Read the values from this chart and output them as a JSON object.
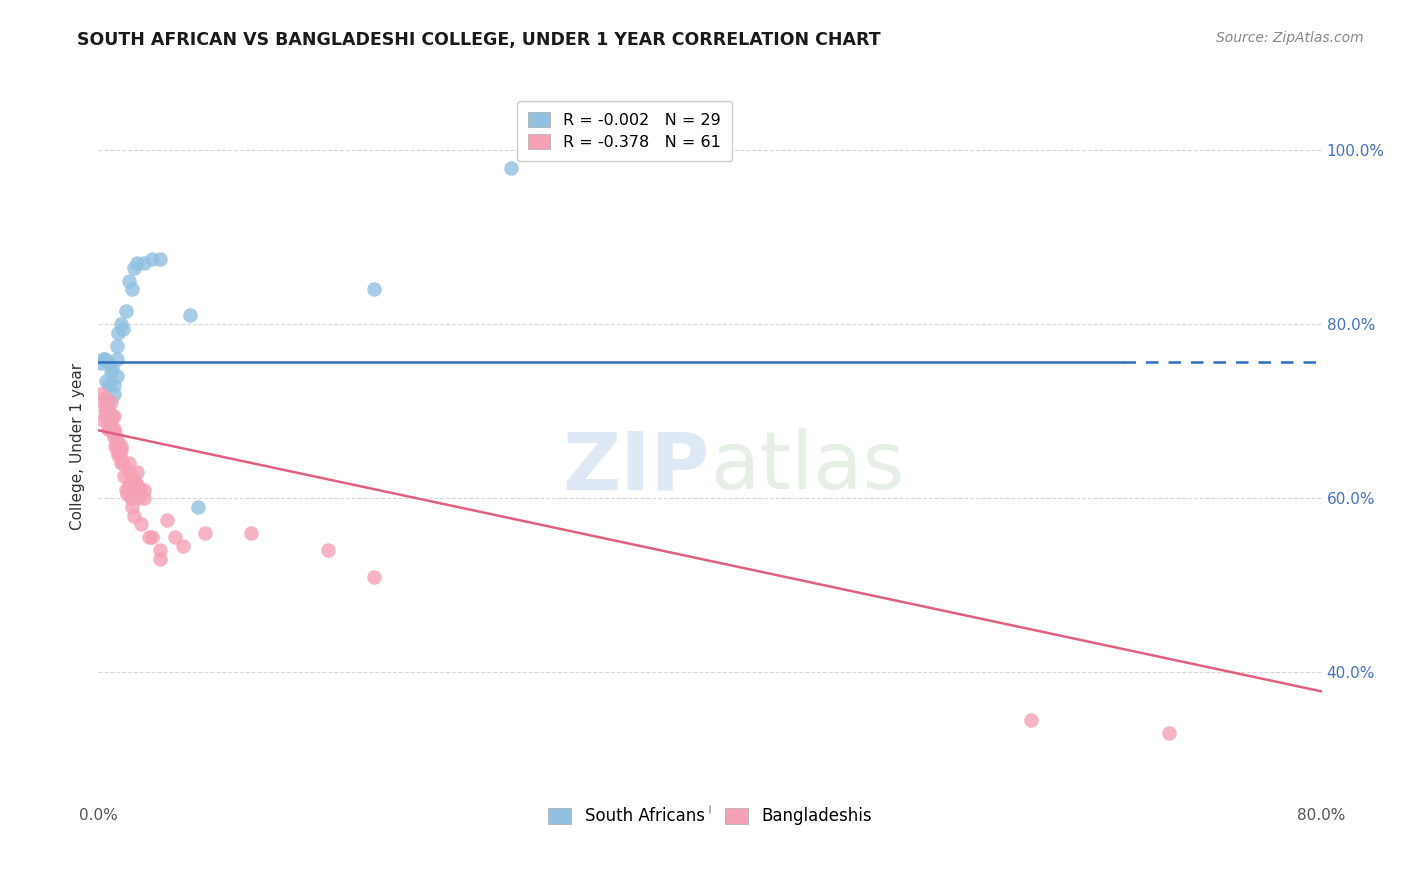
{
  "title": "SOUTH AFRICAN VS BANGLADESHI COLLEGE, UNDER 1 YEAR CORRELATION CHART",
  "source": "Source: ZipAtlas.com",
  "ylabel": "College, Under 1 year",
  "xlim": [
    0.0,
    0.8
  ],
  "ylim": [
    0.25,
    1.07
  ],
  "yticks": [
    0.4,
    0.6,
    0.8,
    1.0
  ],
  "ytick_labels": [
    "40.0%",
    "60.0%",
    "80.0%",
    "100.0%"
  ],
  "blue_color": "#92c0e0",
  "pink_color": "#f4a0b5",
  "blue_line_color": "#3070c0",
  "pink_line_color": "#e06080",
  "watermark_zip": "ZIP",
  "watermark_atlas": "atlas",
  "south_african_points": [
    [
      0.002,
      0.755
    ],
    [
      0.003,
      0.76
    ],
    [
      0.004,
      0.76
    ],
    [
      0.005,
      0.735
    ],
    [
      0.006,
      0.71
    ],
    [
      0.007,
      0.73
    ],
    [
      0.007,
      0.755
    ],
    [
      0.008,
      0.745
    ],
    [
      0.009,
      0.75
    ],
    [
      0.01,
      0.73
    ],
    [
      0.01,
      0.72
    ],
    [
      0.012,
      0.74
    ],
    [
      0.012,
      0.76
    ],
    [
      0.012,
      0.775
    ],
    [
      0.013,
      0.79
    ],
    [
      0.015,
      0.8
    ],
    [
      0.016,
      0.795
    ],
    [
      0.018,
      0.815
    ],
    [
      0.02,
      0.85
    ],
    [
      0.022,
      0.84
    ],
    [
      0.023,
      0.865
    ],
    [
      0.025,
      0.87
    ],
    [
      0.03,
      0.87
    ],
    [
      0.035,
      0.875
    ],
    [
      0.04,
      0.875
    ],
    [
      0.06,
      0.81
    ],
    [
      0.065,
      0.59
    ],
    [
      0.18,
      0.84
    ],
    [
      0.27,
      0.98
    ]
  ],
  "bangladeshi_points": [
    [
      0.002,
      0.72
    ],
    [
      0.003,
      0.69
    ],
    [
      0.003,
      0.71
    ],
    [
      0.004,
      0.7
    ],
    [
      0.004,
      0.715
    ],
    [
      0.005,
      0.695
    ],
    [
      0.005,
      0.705
    ],
    [
      0.006,
      0.7
    ],
    [
      0.006,
      0.68
    ],
    [
      0.006,
      0.69
    ],
    [
      0.007,
      0.68
    ],
    [
      0.007,
      0.695
    ],
    [
      0.007,
      0.7
    ],
    [
      0.008,
      0.69
    ],
    [
      0.008,
      0.71
    ],
    [
      0.009,
      0.68
    ],
    [
      0.009,
      0.695
    ],
    [
      0.01,
      0.67
    ],
    [
      0.01,
      0.68
    ],
    [
      0.01,
      0.695
    ],
    [
      0.011,
      0.66
    ],
    [
      0.011,
      0.675
    ],
    [
      0.012,
      0.655
    ],
    [
      0.012,
      0.665
    ],
    [
      0.013,
      0.65
    ],
    [
      0.013,
      0.665
    ],
    [
      0.014,
      0.65
    ],
    [
      0.015,
      0.64
    ],
    [
      0.015,
      0.655
    ],
    [
      0.015,
      0.66
    ],
    [
      0.016,
      0.64
    ],
    [
      0.017,
      0.625
    ],
    [
      0.018,
      0.61
    ],
    [
      0.019,
      0.605
    ],
    [
      0.02,
      0.615
    ],
    [
      0.02,
      0.63
    ],
    [
      0.02,
      0.64
    ],
    [
      0.021,
      0.6
    ],
    [
      0.022,
      0.59
    ],
    [
      0.023,
      0.58
    ],
    [
      0.024,
      0.62
    ],
    [
      0.025,
      0.615
    ],
    [
      0.025,
      0.63
    ],
    [
      0.026,
      0.6
    ],
    [
      0.027,
      0.61
    ],
    [
      0.028,
      0.57
    ],
    [
      0.03,
      0.6
    ],
    [
      0.03,
      0.61
    ],
    [
      0.033,
      0.555
    ],
    [
      0.035,
      0.555
    ],
    [
      0.04,
      0.54
    ],
    [
      0.04,
      0.53
    ],
    [
      0.045,
      0.575
    ],
    [
      0.05,
      0.555
    ],
    [
      0.055,
      0.545
    ],
    [
      0.07,
      0.56
    ],
    [
      0.1,
      0.56
    ],
    [
      0.15,
      0.54
    ],
    [
      0.18,
      0.51
    ],
    [
      0.61,
      0.345
    ],
    [
      0.7,
      0.33
    ]
  ],
  "blue_trendline": {
    "x_start": 0.0,
    "y_start": 0.757,
    "x_solid_end": 0.67,
    "y_solid_end": 0.757,
    "x_dash_end": 0.8,
    "y_dash_end": 0.757
  },
  "pink_trendline": {
    "x_start": 0.0,
    "y_start": 0.678,
    "x_end": 0.8,
    "y_end": 0.378
  },
  "grid_color": "#cccccc",
  "right_tick_color": "#4472c4",
  "legend_box_color": "#cccccc"
}
